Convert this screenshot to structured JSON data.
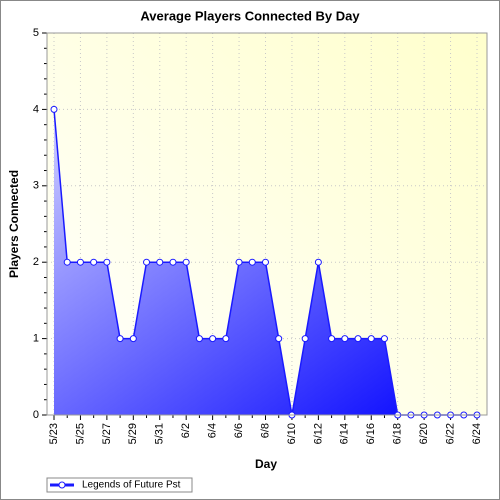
{
  "chart_data": {
    "type": "area",
    "title": "Average Players Connected By Day",
    "x_label": "Day",
    "y_label": "Players Connected",
    "categories": [
      "5/23",
      null,
      "5/25",
      null,
      "5/27",
      null,
      "5/29",
      null,
      "5/31",
      null,
      "6/2",
      null,
      "6/4",
      null,
      "6/6",
      null,
      "6/8",
      null,
      "6/10",
      null,
      "6/12",
      null,
      "6/14",
      null,
      "6/16",
      null,
      "6/18",
      null,
      "6/20",
      null,
      "6/22",
      null,
      "6/24"
    ],
    "series": [
      {
        "name": "Legends of Future Pst",
        "color": "#1a1aff",
        "values": [
          4,
          2,
          2,
          2,
          2,
          1,
          1,
          2,
          2,
          2,
          2,
          1,
          1,
          1,
          2,
          2,
          2,
          1,
          0,
          1,
          2,
          1,
          1,
          1,
          1,
          1,
          0,
          0,
          0,
          0,
          0,
          0,
          0
        ]
      }
    ],
    "ylim": [
      0,
      5
    ],
    "yticks": [
      0,
      1,
      2,
      3,
      4,
      5
    ],
    "grid": true,
    "legend_position": "bottom-left"
  }
}
